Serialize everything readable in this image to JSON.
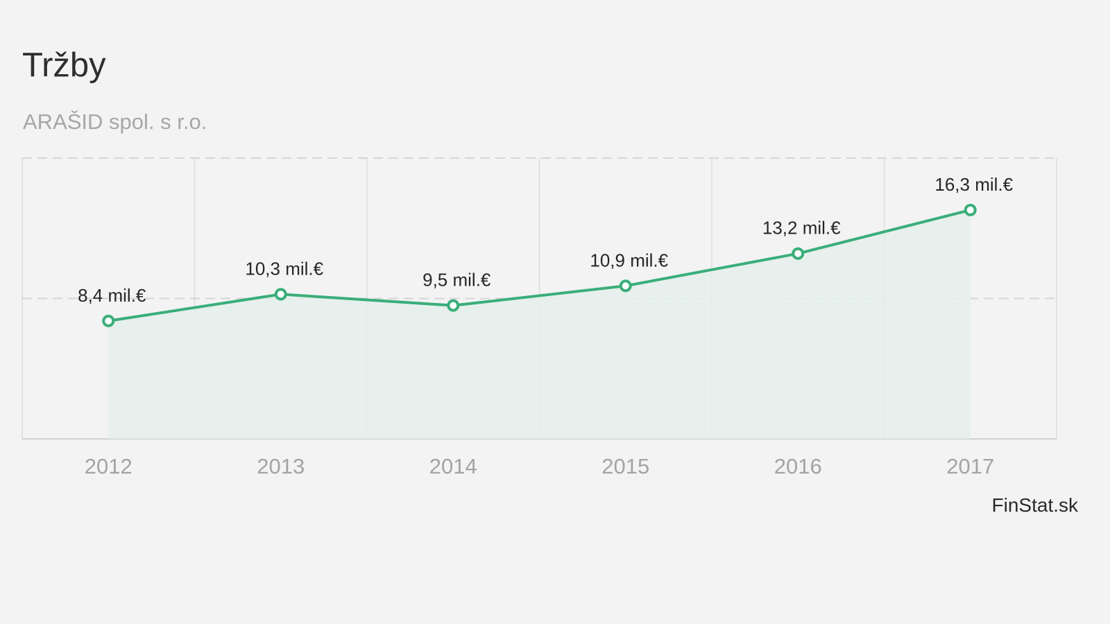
{
  "chart_data": {
    "type": "area",
    "title": "Tržby",
    "subtitle": "ARAŠID spol. s r.o.",
    "categories": [
      "2012",
      "2013",
      "2014",
      "2015",
      "2016",
      "2017"
    ],
    "values": [
      8.4,
      10.3,
      9.5,
      10.9,
      13.2,
      16.3
    ],
    "data_labels": [
      "8,4 mil.€",
      "10,3 mil.€",
      "9,5 mil.€",
      "10,9 mil.€",
      "13,2 mil.€",
      "16,3 mil.€"
    ],
    "ylim": [
      0,
      20
    ],
    "grid": true,
    "source": "FinStat.sk",
    "colors": {
      "line": "#3aae7a",
      "fill": "#e4efea",
      "marker_fill": "#ffffff"
    }
  }
}
